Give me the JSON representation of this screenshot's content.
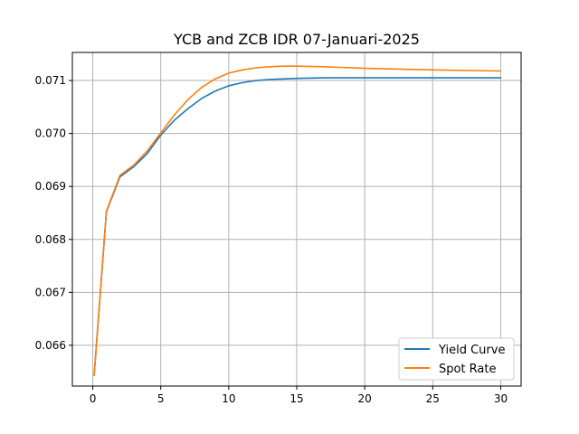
{
  "chart_data": {
    "type": "line",
    "title": "YCB and ZCB IDR 07-Januari-2025",
    "xlabel": "",
    "ylabel": "",
    "xlim": [
      -1.5,
      31.5
    ],
    "ylim": [
      0.06523,
      0.07153
    ],
    "xticks": [
      0,
      5,
      10,
      15,
      20,
      25,
      30
    ],
    "yticks": [
      0.066,
      0.067,
      0.068,
      0.069,
      0.07,
      0.071
    ],
    "grid": true,
    "legend_position": "lower-right",
    "series": [
      {
        "name": "Yield Curve",
        "color": "#1f77b4",
        "x": [
          0.1,
          1,
          2,
          3,
          4,
          5,
          6,
          7,
          8,
          9,
          10,
          11,
          12,
          13,
          14,
          15,
          17,
          20,
          25,
          30
        ],
        "y": [
          0.06543,
          0.06852,
          0.06918,
          0.06937,
          0.06962,
          0.06997,
          0.07025,
          0.07047,
          0.07066,
          0.0708,
          0.0709,
          0.07096,
          0.071,
          0.07102,
          0.07103,
          0.07104,
          0.07105,
          0.07105,
          0.07105,
          0.07105
        ]
      },
      {
        "name": "Spot Rate",
        "color": "#ff7f0e",
        "x": [
          0.1,
          1,
          2,
          3,
          4,
          5,
          6,
          7,
          8,
          9,
          10,
          11,
          12,
          13,
          14,
          15,
          17,
          20,
          25,
          30
        ],
        "y": [
          0.06543,
          0.06853,
          0.06921,
          0.0694,
          0.06967,
          0.07001,
          0.07035,
          0.07064,
          0.07087,
          0.07103,
          0.07114,
          0.0712,
          0.07124,
          0.07126,
          0.07127,
          0.07127,
          0.07126,
          0.07123,
          0.0712,
          0.07118
        ]
      }
    ]
  }
}
